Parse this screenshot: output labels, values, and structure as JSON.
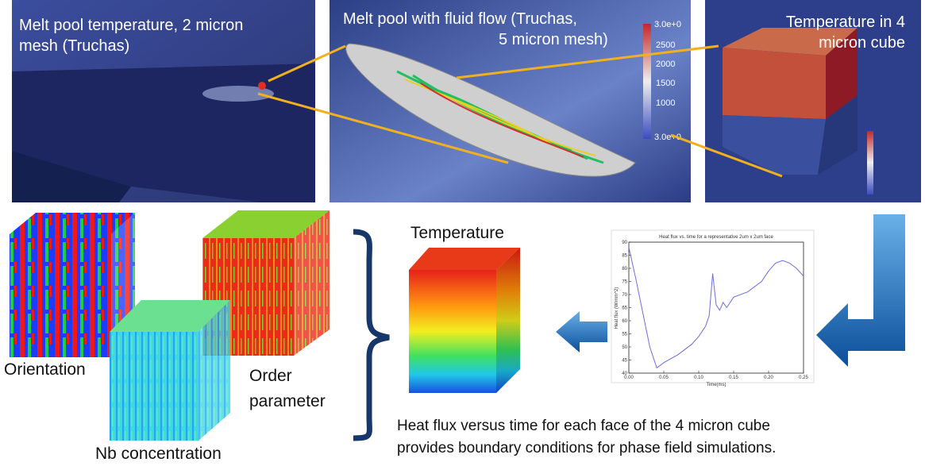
{
  "panels": [
    {
      "title_lines": [
        "Melt pool temperature, 2 micron",
        "mesh (Truchas)"
      ]
    },
    {
      "title_lines": [
        "Melt pool with fluid flow (Truchas,",
        "5 micron mesh)"
      ],
      "colorbar_labels": [
        "3.0e+0",
        "2500",
        "2000",
        "1500",
        "1000",
        "3.0e+0"
      ]
    },
    {
      "title_lines": [
        "Temperature in 4",
        "micron cube"
      ]
    }
  ],
  "cubes": {
    "temperature": "Temperature",
    "orientation": "Orientation",
    "order_parameter_lines": [
      "Order",
      "parameter"
    ],
    "nb_concentration": "Nb concentration"
  },
  "heat_flux_plot": {
    "title": "Heat flux vs. time for a representative 2um x 2um face",
    "xlabel": "Time(ms)",
    "ylabel": "Heat flux (W/mm^2)",
    "xlim": [
      0,
      0.25
    ],
    "ylim": [
      40,
      90
    ],
    "xticks": [
      {
        "value": 0,
        "label": "0.00"
      },
      {
        "value": 0.05,
        "label": "0.05"
      },
      {
        "value": 0.1,
        "label": "0.10"
      },
      {
        "value": 0.15,
        "label": "0.15"
      },
      {
        "value": 0.2,
        "label": "0.20"
      },
      {
        "value": 0.25,
        "label": "0.25"
      }
    ],
    "yticks": [
      40,
      45,
      50,
      55,
      60,
      65,
      70,
      75,
      80,
      85,
      90
    ],
    "x": [
      0,
      0.01,
      0.02,
      0.03,
      0.04,
      0.05,
      0.07,
      0.09,
      0.1,
      0.11,
      0.115,
      0.12,
      0.125,
      0.13,
      0.135,
      0.14,
      0.15,
      0.17,
      0.19,
      0.2,
      0.21,
      0.22,
      0.23,
      0.24,
      0.25
    ],
    "y": [
      88,
      76,
      63,
      50,
      42,
      44,
      47,
      51,
      54,
      58,
      62,
      78,
      66,
      64,
      67,
      65,
      69,
      71,
      75,
      79,
      82,
      83,
      82,
      80,
      77
    ]
  },
  "caption_lines": [
    "Heat flux versus time for each face of the 4 micron cube",
    "provides boundary conditions for phase field simulations."
  ]
}
